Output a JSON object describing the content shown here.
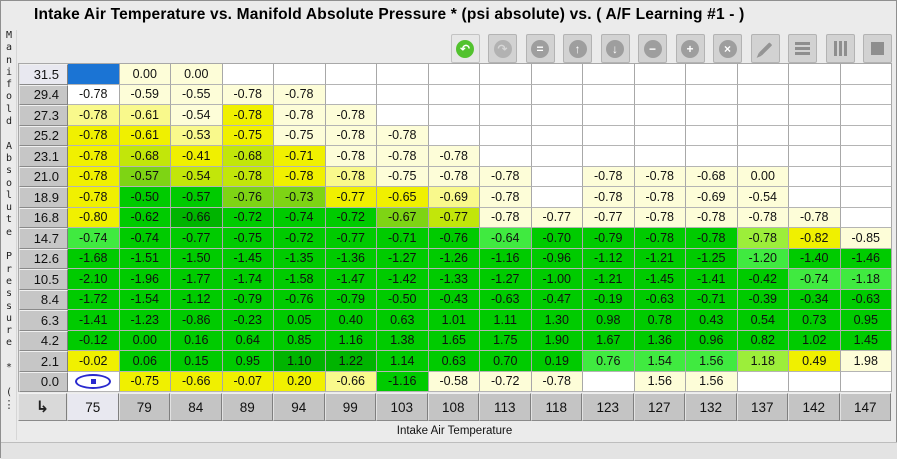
{
  "window": {
    "title": "Intake Air Temperature vs. Manifold Absolute Pressure * (psi absolute) vs. ( A/F Learning #1 -   )"
  },
  "y_axis": {
    "label": "Manifold Absolute Pressure * (",
    "more": "⋮"
  },
  "x_axis": {
    "label": "Intake Air Temperature"
  },
  "toolbar": {
    "buttons": [
      {
        "name": "undo-button",
        "icon": "undo-icon",
        "type": "circle",
        "glyph": "↶",
        "circle": "#52c22e",
        "fg": "#ffffff",
        "active": true
      },
      {
        "name": "redo-button",
        "icon": "redo-icon",
        "type": "circle",
        "glyph": "↷",
        "circle": "#b2b2b2",
        "fg": "#d6d6d6",
        "active": false
      },
      {
        "name": "set-equal-button",
        "icon": "equals-icon",
        "type": "circle",
        "glyph": "=",
        "circle": "#9e9e9e",
        "fg": "#ffffff",
        "active": false
      },
      {
        "name": "increment-coarse-button",
        "icon": "arrow-up-icon",
        "type": "circle",
        "glyph": "↑",
        "circle": "#9e9e9e",
        "fg": "#ffffff",
        "active": false
      },
      {
        "name": "decrement-coarse-button",
        "icon": "arrow-down-icon",
        "type": "circle",
        "glyph": "↓",
        "circle": "#9e9e9e",
        "fg": "#ffffff",
        "active": false
      },
      {
        "name": "subtract-button",
        "icon": "minus-icon",
        "type": "circle",
        "glyph": "−",
        "circle": "#9e9e9e",
        "fg": "#ffffff",
        "active": false
      },
      {
        "name": "add-button",
        "icon": "plus-icon",
        "type": "circle",
        "glyph": "+",
        "circle": "#9e9e9e",
        "fg": "#ffffff",
        "active": false
      },
      {
        "name": "multiply-button",
        "icon": "multiply-icon",
        "type": "circle",
        "glyph": "×",
        "circle": "#9e9e9e",
        "fg": "#ffffff",
        "active": false
      },
      {
        "name": "edit-button",
        "icon": "pencil-icon",
        "type": "pencil",
        "active": false
      },
      {
        "name": "interpolate-rows-button",
        "icon": "horizontal-bars-icon",
        "type": "bars-h",
        "active": false
      },
      {
        "name": "interpolate-columns-button",
        "icon": "vertical-bars-icon",
        "type": "bars-v",
        "active": false
      },
      {
        "name": "fill-button",
        "icon": "square-icon",
        "type": "square",
        "active": false
      }
    ]
  },
  "table": {
    "corner_icon": "↳",
    "row_headers": [
      "31.5",
      "29.4",
      "27.3",
      "25.2",
      "23.1",
      "21.0",
      "18.9",
      "16.8",
      "14.7",
      "12.6",
      "10.5",
      "8.4",
      "6.3",
      "4.2",
      "2.1",
      "0.0"
    ],
    "col_headers": [
      "75",
      "79",
      "84",
      "89",
      "94",
      "99",
      "103",
      "108",
      "113",
      "118",
      "123",
      "127",
      "132",
      "137",
      "142",
      "147"
    ],
    "selected": {
      "row": 0,
      "col": 0
    },
    "trace": {
      "row": 15,
      "col": 0
    },
    "selection_color": "#1b74d4",
    "palette": {
      "B": "#1b74d4",
      "W": "#ffffff",
      "P": "#fdfdd8",
      "L": "#f9f98c",
      "Y": "#f0f000",
      "C": "#c2e60a",
      "G2": "#7ed414",
      "G": "#00cb00",
      "DG": "#00b400",
      "BG": "#40ea40",
      "BY": "#9cee3a"
    },
    "rows": [
      {
        "values": [
          "",
          "0.00",
          "0.00",
          "",
          "",
          "",
          "",
          "",
          "",
          "",
          "",
          "",
          "",
          "",
          "",
          ""
        ],
        "colors": [
          "B",
          "P",
          "P",
          "W",
          "W",
          "W",
          "W",
          "W",
          "W",
          "W",
          "W",
          "W",
          "W",
          "W",
          "W",
          "W"
        ]
      },
      {
        "values": [
          "-0.78",
          "-0.59",
          "-0.55",
          "-0.78",
          "-0.78",
          "",
          "",
          "",
          "",
          "",
          "",
          "",
          "",
          "",
          "",
          ""
        ],
        "colors": [
          "W",
          "P",
          "P",
          "P",
          "P",
          "W",
          "W",
          "W",
          "W",
          "W",
          "W",
          "W",
          "W",
          "W",
          "W",
          "W"
        ]
      },
      {
        "values": [
          "-0.78",
          "-0.61",
          "-0.54",
          "-0.78",
          "-0.78",
          "-0.78",
          "",
          "",
          "",
          "",
          "",
          "",
          "",
          "",
          "",
          ""
        ],
        "colors": [
          "L",
          "L",
          "P",
          "Y",
          "P",
          "P",
          "W",
          "W",
          "W",
          "W",
          "W",
          "W",
          "W",
          "W",
          "W",
          "W"
        ]
      },
      {
        "values": [
          "-0.78",
          "-0.61",
          "-0.53",
          "-0.75",
          "-0.75",
          "-0.78",
          "-0.78",
          "",
          "",
          "",
          "",
          "",
          "",
          "",
          "",
          ""
        ],
        "colors": [
          "Y",
          "Y",
          "L",
          "Y",
          "P",
          "P",
          "P",
          "W",
          "W",
          "W",
          "W",
          "W",
          "W",
          "W",
          "W",
          "W"
        ]
      },
      {
        "values": [
          "-0.78",
          "-0.68",
          "-0.41",
          "-0.68",
          "-0.71",
          "-0.78",
          "-0.78",
          "-0.78",
          "",
          "",
          "",
          "",
          "",
          "",
          "",
          ""
        ],
        "colors": [
          "Y",
          "C",
          "Y",
          "C",
          "Y",
          "P",
          "P",
          "P",
          "W",
          "W",
          "W",
          "W",
          "W",
          "W",
          "W",
          "W"
        ]
      },
      {
        "values": [
          "-0.78",
          "-0.57",
          "-0.54",
          "-0.78",
          "-0.78",
          "-0.78",
          "-0.75",
          "-0.78",
          "-0.78",
          "",
          "-0.78",
          "-0.78",
          "-0.68",
          "0.00",
          "",
          ""
        ],
        "colors": [
          "Y",
          "G2",
          "C",
          "C",
          "Y",
          "L",
          "P",
          "P",
          "P",
          "W",
          "P",
          "P",
          "P",
          "P",
          "W",
          "W"
        ]
      },
      {
        "values": [
          "-0.78",
          "-0.50",
          "-0.57",
          "-0.76",
          "-0.73",
          "-0.77",
          "-0.65",
          "-0.69",
          "-0.78",
          "",
          "-0.78",
          "-0.78",
          "-0.69",
          "-0.54",
          "",
          ""
        ],
        "colors": [
          "Y",
          "G",
          "G",
          "G2",
          "G2",
          "Y",
          "Y",
          "L",
          "P",
          "W",
          "P",
          "P",
          "P",
          "P",
          "W",
          "W"
        ]
      },
      {
        "values": [
          "-0.80",
          "-0.62",
          "-0.66",
          "-0.72",
          "-0.74",
          "-0.72",
          "-0.67",
          "-0.77",
          "-0.78",
          "-0.77",
          "-0.77",
          "-0.78",
          "-0.78",
          "-0.78",
          "-0.78",
          ""
        ],
        "colors": [
          "Y",
          "G",
          "DG",
          "G",
          "G",
          "G",
          "G2",
          "C",
          "P",
          "P",
          "P",
          "P",
          "P",
          "P",
          "P",
          "W"
        ]
      },
      {
        "values": [
          "-0.74",
          "-0.74",
          "-0.77",
          "-0.75",
          "-0.72",
          "-0.77",
          "-0.71",
          "-0.76",
          "-0.64",
          "-0.70",
          "-0.79",
          "-0.78",
          "-0.78",
          "-0.78",
          "-0.82",
          "-0.85"
        ],
        "colors": [
          "BG",
          "G",
          "G",
          "G",
          "G",
          "G",
          "G",
          "G",
          "BG",
          "G",
          "G",
          "G",
          "G",
          "BY",
          "Y",
          "P"
        ]
      },
      {
        "values": [
          "-1.68",
          "-1.51",
          "-1.50",
          "-1.45",
          "-1.35",
          "-1.36",
          "-1.27",
          "-1.26",
          "-1.16",
          "-0.96",
          "-1.12",
          "-1.21",
          "-1.25",
          "-1.20",
          "-1.40",
          "-1.46"
        ],
        "colors": [
          "G",
          "G",
          "G",
          "G",
          "G",
          "G",
          "G",
          "G",
          "G",
          "G",
          "G",
          "G",
          "G",
          "BG",
          "G",
          "G"
        ]
      },
      {
        "values": [
          "-2.10",
          "-1.96",
          "-1.77",
          "-1.74",
          "-1.58",
          "-1.47",
          "-1.42",
          "-1.33",
          "-1.27",
          "-1.00",
          "-1.21",
          "-1.45",
          "-1.41",
          "-0.42",
          "-0.74",
          "-1.18"
        ],
        "colors": [
          "G",
          "G",
          "G",
          "G",
          "G",
          "G",
          "G",
          "G",
          "G",
          "G",
          "G",
          "G",
          "G",
          "G",
          "BG",
          "BG"
        ]
      },
      {
        "values": [
          "-1.72",
          "-1.54",
          "-1.12",
          "-0.79",
          "-0.76",
          "-0.79",
          "-0.50",
          "-0.43",
          "-0.63",
          "-0.47",
          "-0.19",
          "-0.63",
          "-0.71",
          "-0.39",
          "-0.34",
          "-0.63"
        ],
        "colors": [
          "G",
          "G",
          "G",
          "G",
          "G",
          "G",
          "G",
          "G",
          "G",
          "G",
          "G",
          "G",
          "G",
          "G",
          "G",
          "G"
        ]
      },
      {
        "values": [
          "-1.41",
          "-1.23",
          "-0.86",
          "-0.23",
          "0.05",
          "0.40",
          "0.63",
          "1.01",
          "1.11",
          "1.30",
          "0.98",
          "0.78",
          "0.43",
          "0.54",
          "0.73",
          "0.95"
        ],
        "colors": [
          "G",
          "G",
          "G",
          "G",
          "G",
          "G",
          "G",
          "G",
          "G",
          "G",
          "G",
          "G",
          "G",
          "G",
          "G",
          "G"
        ]
      },
      {
        "values": [
          "-0.12",
          "0.00",
          "0.16",
          "0.64",
          "0.85",
          "1.16",
          "1.38",
          "1.65",
          "1.75",
          "1.90",
          "1.67",
          "1.36",
          "0.96",
          "0.82",
          "1.02",
          "1.45"
        ],
        "colors": [
          "G",
          "G",
          "G",
          "G",
          "G",
          "G",
          "G",
          "G",
          "G",
          "G",
          "G",
          "G",
          "G",
          "G",
          "G",
          "G"
        ]
      },
      {
        "values": [
          "-0.02",
          "0.06",
          "0.15",
          "0.95",
          "1.10",
          "1.22",
          "1.14",
          "0.63",
          "0.70",
          "0.19",
          "0.76",
          "1.54",
          "1.56",
          "1.18",
          "0.49",
          "1.98"
        ],
        "colors": [
          "Y",
          "G",
          "G",
          "G",
          "DG",
          "DG",
          "G",
          "G",
          "G",
          "G",
          "BG",
          "BG",
          "BG",
          "BY",
          "Y",
          "P"
        ]
      },
      {
        "values": [
          "",
          "-0.75",
          "-0.66",
          "-0.07",
          "0.20",
          "-0.66",
          "-1.16",
          "-0.58",
          "-0.72",
          "-0.78",
          "",
          "1.56",
          "1.56",
          "",
          "",
          ""
        ],
        "colors": [
          "W",
          "Y",
          "Y",
          "Y",
          "Y",
          "L",
          "G",
          "P",
          "P",
          "P",
          "W",
          "P",
          "P",
          "W",
          "W",
          "W"
        ]
      }
    ]
  }
}
